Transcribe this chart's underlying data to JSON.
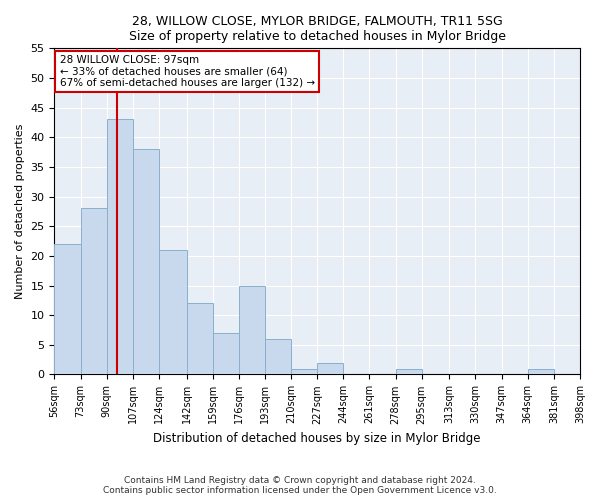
{
  "title1": "28, WILLOW CLOSE, MYLOR BRIDGE, FALMOUTH, TR11 5SG",
  "title2": "Size of property relative to detached houses in Mylor Bridge",
  "xlabel": "Distribution of detached houses by size in Mylor Bridge",
  "ylabel": "Number of detached properties",
  "bar_color": "#c8d8ed",
  "bar_edge_color": "#8ab0cc",
  "bin_edges": [
    56,
    73,
    90,
    107,
    124,
    142,
    159,
    176,
    193,
    210,
    227,
    244,
    261,
    278,
    295,
    313,
    330,
    347,
    364,
    381,
    398
  ],
  "bar_heights": [
    22,
    28,
    43,
    38,
    21,
    12,
    7,
    15,
    6,
    1,
    2,
    0,
    0,
    1,
    0,
    0,
    0,
    0,
    1,
    0
  ],
  "property_size": 97,
  "redline_x": 97,
  "annotation_title": "28 WILLOW CLOSE: 97sqm",
  "annotation_line1": "← 33% of detached houses are smaller (64)",
  "annotation_line2": "67% of semi-detached houses are larger (132) →",
  "annotation_box_facecolor": "#ffffff",
  "annotation_border_color": "#cc0000",
  "redline_color": "#cc0000",
  "ylim": [
    0,
    55
  ],
  "yticks": [
    0,
    5,
    10,
    15,
    20,
    25,
    30,
    35,
    40,
    45,
    50,
    55
  ],
  "grid_color": "#ffffff",
  "background_color": "#ffffff",
  "plot_bg_color": "#e8eef5",
  "footer1": "Contains HM Land Registry data © Crown copyright and database right 2024.",
  "footer2": "Contains public sector information licensed under the Open Government Licence v3.0."
}
